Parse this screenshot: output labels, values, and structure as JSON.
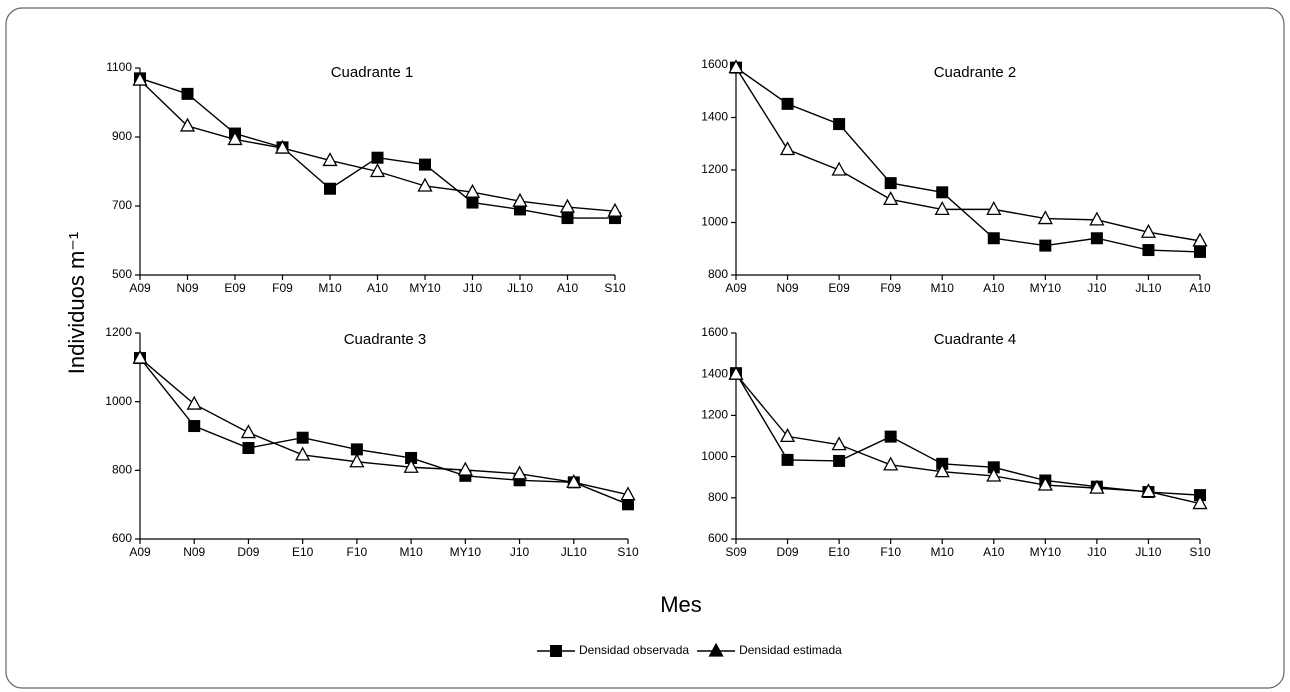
{
  "figure": {
    "x_label": "Mes",
    "y_label": "Individuos m⁻¹"
  },
  "chart_data": [
    {
      "type": "line",
      "title": "Cuadrante 1",
      "categories": [
        "A09",
        "N09",
        "E09",
        "F09",
        "M10",
        "A10",
        "MY10",
        "J10",
        "JL10",
        "A10",
        "S10"
      ],
      "series": [
        {
          "name": "Densidad observada",
          "color": "#000000",
          "marker": "square",
          "values": [
            1070,
            1025,
            910,
            870,
            750,
            840,
            820,
            710,
            690,
            665,
            665
          ]
        },
        {
          "name": "Densidad estimada",
          "color": "#000000",
          "marker": "triangle",
          "values": [
            1065,
            932,
            893,
            868,
            832,
            800,
            758,
            740,
            714,
            697,
            685
          ]
        }
      ],
      "ylim": [
        500,
        1100
      ],
      "yticks": [
        500,
        700,
        900,
        1100
      ],
      "grid": false
    },
    {
      "type": "line",
      "title": "Cuadrante 2",
      "categories": [
        "A09",
        "N09",
        "E09",
        "F09",
        "M10",
        "A10",
        "MY10",
        "J10",
        "JL10",
        "A10"
      ],
      "series": [
        {
          "name": "Densidad observada",
          "color": "#000000",
          "marker": "square",
          "values": [
            1590,
            1452,
            1375,
            1150,
            1115,
            940,
            912,
            940,
            895,
            888
          ]
        },
        {
          "name": "Densidad estimada",
          "color": "#000000",
          "marker": "triangle",
          "values": [
            1590,
            1278,
            1200,
            1088,
            1050,
            1050,
            1015,
            1010,
            963,
            930
          ]
        }
      ],
      "ylim": [
        800,
        1600
      ],
      "yticks": [
        800,
        1000,
        1200,
        1400,
        1600
      ],
      "grid": false
    },
    {
      "type": "line",
      "title": "Cuadrante 3",
      "categories": [
        "A09",
        "N09",
        "D09",
        "E10",
        "F10",
        "M10",
        "MY10",
        "J10",
        "JL10",
        "S10"
      ],
      "series": [
        {
          "name": "Densidad observada",
          "color": "#000000",
          "marker": "square",
          "values": [
            1127,
            929,
            865,
            895,
            861,
            836,
            784,
            771,
            765,
            701
          ]
        },
        {
          "name": "Densidad estimada",
          "color": "#000000",
          "marker": "triangle",
          "values": [
            1127,
            993,
            910,
            845,
            825,
            809,
            801,
            790,
            765,
            729
          ]
        }
      ],
      "ylim": [
        600,
        1200
      ],
      "yticks": [
        600,
        800,
        1000,
        1200
      ],
      "grid": false
    },
    {
      "type": "line",
      "title": "Cuadrante 4",
      "categories": [
        "S09",
        "D09",
        "E10",
        "F10",
        "M10",
        "A10",
        "MY10",
        "J10",
        "JL10",
        "S10"
      ],
      "series": [
        {
          "name": "Densidad observada",
          "color": "#000000",
          "marker": "square",
          "values": [
            1405,
            984,
            979,
            1097,
            965,
            948,
            884,
            854,
            828,
            813
          ]
        },
        {
          "name": "Densidad estimada",
          "color": "#000000",
          "marker": "triangle",
          "values": [
            1400,
            1098,
            1058,
            960,
            927,
            906,
            862,
            847,
            830,
            772
          ]
        }
      ],
      "ylim": [
        600,
        1600
      ],
      "yticks": [
        600,
        800,
        1000,
        1200,
        1400,
        1600
      ],
      "grid": false
    }
  ]
}
